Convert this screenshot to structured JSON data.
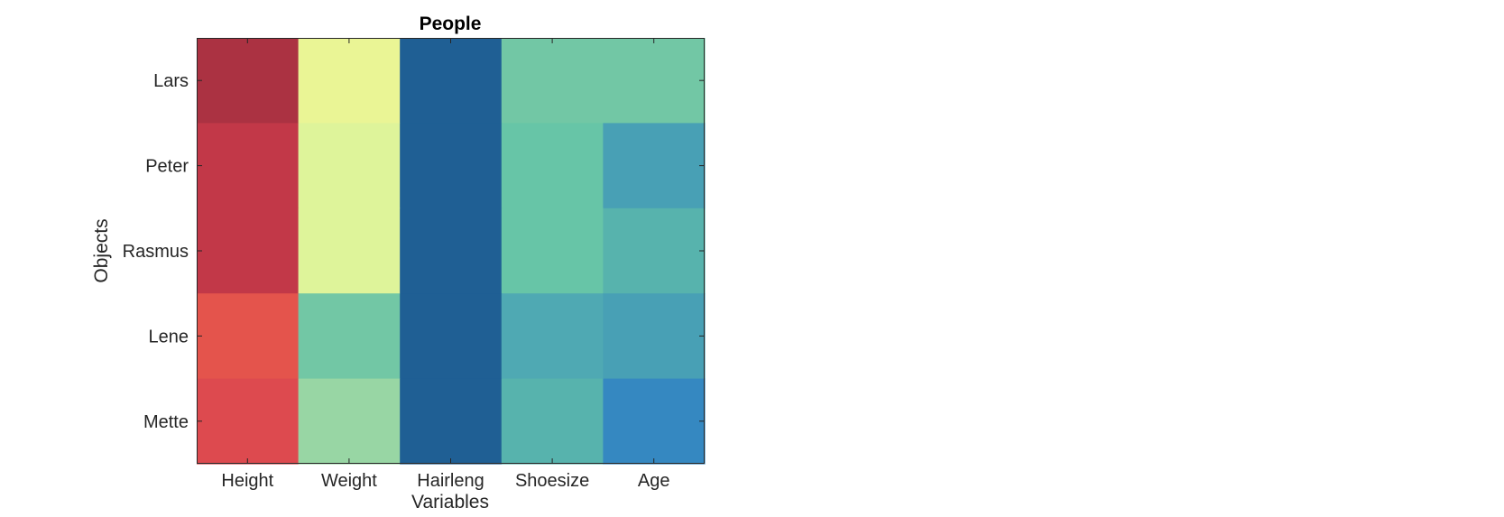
{
  "chart_data": {
    "type": "heatmap",
    "title": "People",
    "xlabel": "Variables",
    "ylabel": "Objects",
    "x_categories": [
      "Height",
      "Weight",
      "Hairleng",
      "Shoesize",
      "Age"
    ],
    "y_categories": [
      "Lars",
      "Peter",
      "Rasmus",
      "Lene",
      "Mette"
    ],
    "grid": false,
    "colorbar": false,
    "cell_colors": [
      [
        "#ab3242",
        "#eaf595",
        "#1f5f94",
        "#72c7a5",
        "#72c7a5"
      ],
      [
        "#c23848",
        "#def49a",
        "#1f5f94",
        "#67c5a7",
        "#48a0b5"
      ],
      [
        "#c23848",
        "#def49a",
        "#1f5f94",
        "#67c5a7",
        "#57b3ad"
      ],
      [
        "#e4544c",
        "#72c7a5",
        "#1f5f94",
        "#4fa9b3",
        "#48a0b5"
      ],
      [
        "#dd4a4f",
        "#98d6a4",
        "#1f5f94",
        "#57b3ad",
        "#3588c1"
      ]
    ]
  }
}
